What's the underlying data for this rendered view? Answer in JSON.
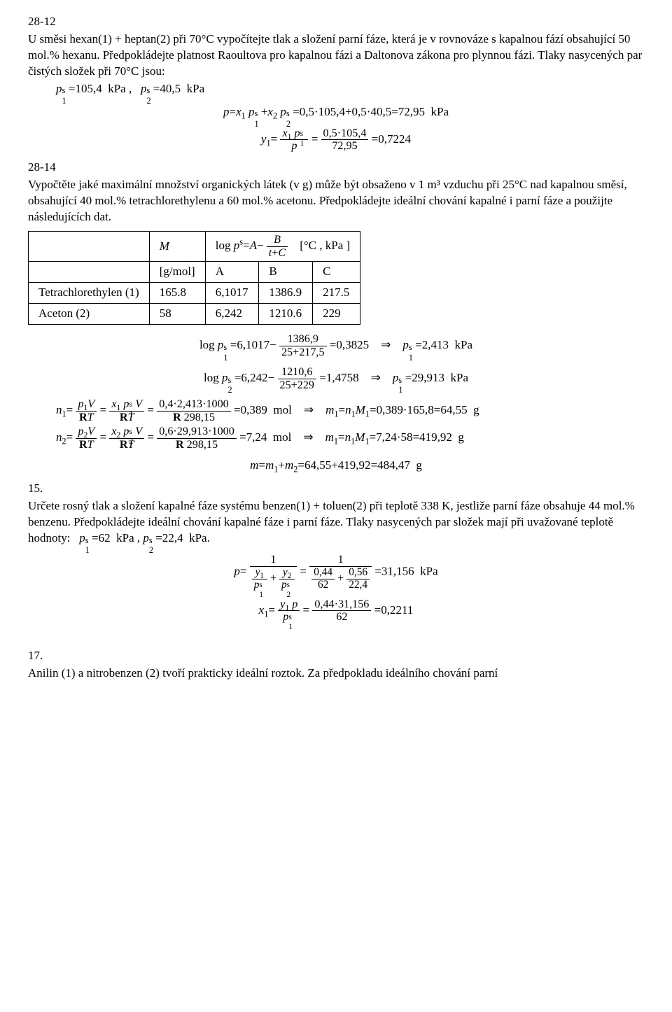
{
  "p28_12": {
    "num": "28-12",
    "text1": "U směsi hexan(1) + heptan(2) při 70°C vypočítejte tlak a složení parní fáze, která je v rovnováze s kapalnou fází obsahující 50 mol.% hexanu. Předpokládejte platnost Raoultova pro kapalnou fázi a Daltonova zákona pro plynnou fázi. Tlaky nasycených par čistých složek při 70°C jsou:",
    "p1s": "105,4",
    "unit1": "kPa",
    "p2s": "40,5",
    "unit2": "kPa",
    "eq_p_val": "0,5·105,4+0,5·40,5=72,95",
    "eq_p_unit": "kPa",
    "y1_num": "0,5·105,4",
    "y1_den": "72,95",
    "y1_val": "0,7224"
  },
  "p28_14": {
    "num": "28-14",
    "text1": "Vypočtěte jaké maximální množství organických látek (v g) může být obsaženo v 1 m³ vzduchu při 25°C nad kapalnou směsí, obsahující 40 mol.% tetrachlorethylenu a 60 mol.% acetonu. Předpokládejte ideální chování kapalné i parní fáze a použijte následujících dat.",
    "table": {
      "head": [
        "",
        "M",
        "A",
        "B",
        "C"
      ],
      "unitrow": [
        "",
        "[g/mol]",
        "A",
        "B",
        "C"
      ],
      "rows": [
        [
          "Tetrachlorethylen (1)",
          "165.8",
          "6,1017",
          "1386.9",
          "217.5"
        ],
        [
          "Aceton (2)",
          "58",
          "6,242",
          "1210.6",
          "229"
        ]
      ],
      "antoine_unit": "[°C , kPa ]"
    },
    "logp1_A": "6,1017",
    "logp1_Bnum": "1386,9",
    "logp1_Bden": "25+217,5",
    "logp1_val": "0,3825",
    "p1s_val": "2,413",
    "p1s_unit": "kPa",
    "logp2_A": "6,242",
    "logp2_Bnum": "1210,6",
    "logp2_Bden": "25+229",
    "logp2_val": "1,4758",
    "p2s_val": "29,913",
    "p2s_unit": "kPa",
    "n1_num3": "0,4·2,413·1000",
    "n1_den3": "298,15",
    "n1_val": "0,389",
    "n1_unit": "mol",
    "m1_expr": "0,389·165,8",
    "m1_val": "64,55",
    "m1_unit": "g",
    "n2_num3": "0,6·29,913·1000",
    "n2_den3": "298,15",
    "n2_val": "7,24",
    "n2_unit": "mol",
    "m2_expr": "7,24·58",
    "m2_val": "419,92",
    "m2_unit": "g",
    "mtot_expr": "64,55+419,92",
    "mtot_val": "484,47",
    "mtot_unit": "g"
  },
  "p15": {
    "num": "15.",
    "text": "Určete rosný tlak a složení kapalné fáze systému benzen(1) + toluen(2) při teplotě 338 K, jestliže parní fáze obsahuje 44 mol.% benzenu. Předpokládejte ideální chování kapalné fáze i parní fáze. Tlaky nasycených par složek mají při uvažované teplotě hodnoty:",
    "p1s": "62",
    "p1unit": "kPa",
    "p2s": "22,4",
    "p2unit": "kPa",
    "p_den1num": "0,44",
    "p_den1den": "62",
    "p_den2num": "0,56",
    "p_den2den": "22,4",
    "p_val": "31,156",
    "p_unit": "kPa",
    "x1_num": "0,44·31,156",
    "x1_den": "62",
    "x1_val": "0,2211"
  },
  "p17": {
    "num": "17.",
    "text": "Anilin (1) a nitrobenzen (2) tvoří prakticky ideální roztok. Za předpokladu ideálního chování parní"
  }
}
